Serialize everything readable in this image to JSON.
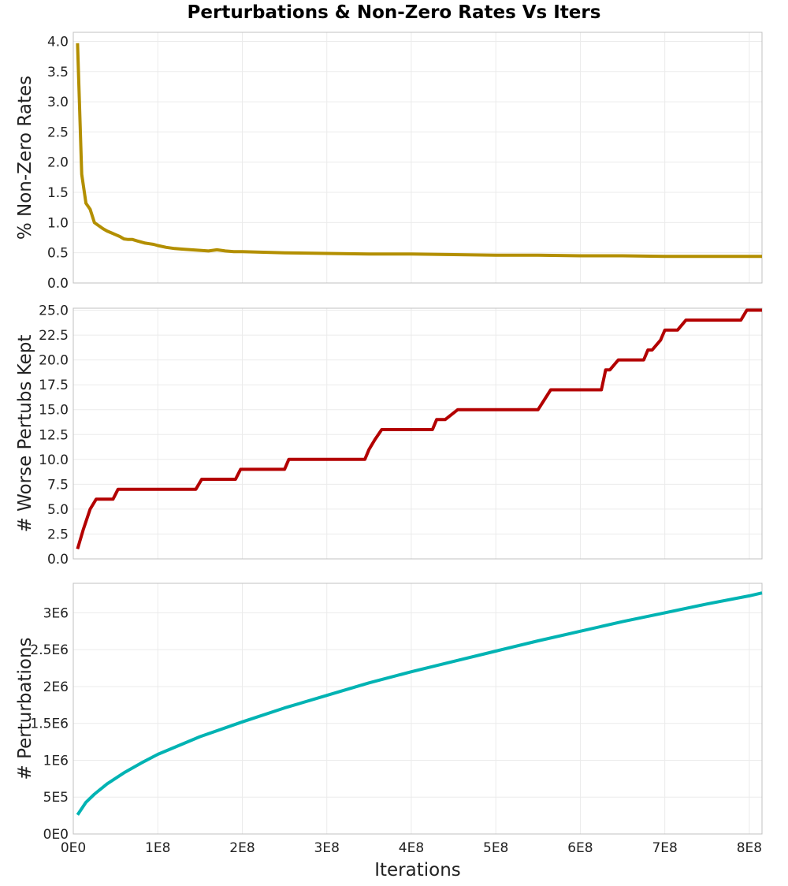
{
  "title": "Perturbations & Non-Zero Rates Vs Iters",
  "x_axis": {
    "label": "Iterations",
    "range": [
      0,
      815000000
    ],
    "ticks": [
      0,
      100000000,
      200000000,
      300000000,
      400000000,
      500000000,
      600000000,
      700000000,
      800000000
    ],
    "tick_labels": [
      "0E0",
      "1E8",
      "2E8",
      "3E8",
      "4E8",
      "5E8",
      "6E8",
      "7E8",
      "8E8"
    ]
  },
  "grid": true,
  "chart_data": [
    {
      "type": "line",
      "title": "",
      "xlabel": "",
      "ylabel": "% Non-Zero Rates",
      "ylim": [
        0,
        4.15
      ],
      "yticks": [
        0,
        0.5,
        1.0,
        1.5,
        2.0,
        2.5,
        3.0,
        3.5,
        4.0
      ],
      "ytick_labels": [
        "0.0",
        "0.5",
        "1.0",
        "1.5",
        "2.0",
        "2.5",
        "3.0",
        "3.5",
        "4.0"
      ],
      "color": "#b38f00",
      "series": [
        {
          "x": [
            5000000,
            10000000,
            15000000,
            20000000,
            25000000,
            30000000,
            35000000,
            40000000,
            45000000,
            50000000,
            55000000,
            60000000,
            65000000,
            70000000,
            75000000,
            80000000,
            85000000,
            90000000,
            95000000,
            100000000,
            110000000,
            120000000,
            130000000,
            140000000,
            150000000,
            160000000,
            170000000,
            180000000,
            190000000,
            200000000,
            250000000,
            300000000,
            350000000,
            400000000,
            450000000,
            500000000,
            550000000,
            600000000,
            650000000,
            700000000,
            750000000,
            800000000,
            815000000
          ],
          "y": [
            3.97,
            1.8,
            1.32,
            1.22,
            1.0,
            0.95,
            0.9,
            0.86,
            0.83,
            0.8,
            0.77,
            0.73,
            0.72,
            0.72,
            0.7,
            0.68,
            0.66,
            0.65,
            0.64,
            0.62,
            0.59,
            0.57,
            0.56,
            0.55,
            0.54,
            0.53,
            0.55,
            0.53,
            0.52,
            0.52,
            0.5,
            0.49,
            0.48,
            0.48,
            0.47,
            0.46,
            0.46,
            0.45,
            0.45,
            0.44,
            0.44,
            0.44,
            0.44
          ]
        }
      ]
    },
    {
      "type": "line",
      "title": "",
      "xlabel": "",
      "ylabel": "# Worse Pertubs Kept",
      "ylim": [
        0,
        25.2
      ],
      "yticks": [
        0,
        2.5,
        5.0,
        7.5,
        10.0,
        12.5,
        15.0,
        17.5,
        20.0,
        22.5,
        25.0
      ],
      "ytick_labels": [
        "0.0",
        "2.5",
        "5.0",
        "7.5",
        "10.0",
        "12.5",
        "15.0",
        "17.5",
        "20.0",
        "22.5",
        "25.0"
      ],
      "color": "#b30000",
      "series": [
        {
          "x": [
            5000000,
            12000000,
            20000000,
            27000000,
            47000000,
            53000000,
            145000000,
            152000000,
            192000000,
            198000000,
            250000000,
            255000000,
            345000000,
            350000000,
            357000000,
            365000000,
            425000000,
            430000000,
            440000000,
            455000000,
            462000000,
            550000000,
            565000000,
            625000000,
            630000000,
            635000000,
            645000000,
            675000000,
            680000000,
            685000000,
            695000000,
            700000000,
            715000000,
            725000000,
            790000000,
            797000000,
            815000000
          ],
          "y": [
            1,
            3,
            5,
            6,
            6,
            7,
            7,
            8,
            8,
            9,
            9,
            10,
            10,
            11,
            12,
            13,
            13,
            14,
            14,
            15,
            15,
            15,
            17,
            17,
            19,
            19,
            20,
            20,
            21,
            21,
            22,
            23,
            23,
            24,
            24,
            25,
            25
          ]
        }
      ]
    },
    {
      "type": "line",
      "title": "",
      "xlabel": "",
      "ylabel": "# Perturbations",
      "ylim": [
        0,
        3400000
      ],
      "yticks": [
        0,
        500000,
        1000000,
        1500000,
        2000000,
        2500000,
        3000000
      ],
      "ytick_labels": [
        "0E0",
        "5E5",
        "1E6",
        "1.5E6",
        "2E6",
        "2.5E6",
        "3E6"
      ],
      "color": "#00b3b3",
      "series": [
        {
          "x": [
            5000000,
            15000000,
            25000000,
            40000000,
            60000000,
            80000000,
            100000000,
            150000000,
            200000000,
            250000000,
            300000000,
            350000000,
            400000000,
            450000000,
            500000000,
            550000000,
            600000000,
            650000000,
            700000000,
            750000000,
            800000000,
            815000000
          ],
          "y": [
            260000,
            430000,
            540000,
            680000,
            830000,
            960000,
            1080000,
            1320000,
            1520000,
            1710000,
            1880000,
            2050000,
            2200000,
            2340000,
            2480000,
            2620000,
            2750000,
            2880000,
            3000000,
            3120000,
            3230000,
            3270000
          ]
        }
      ]
    }
  ]
}
